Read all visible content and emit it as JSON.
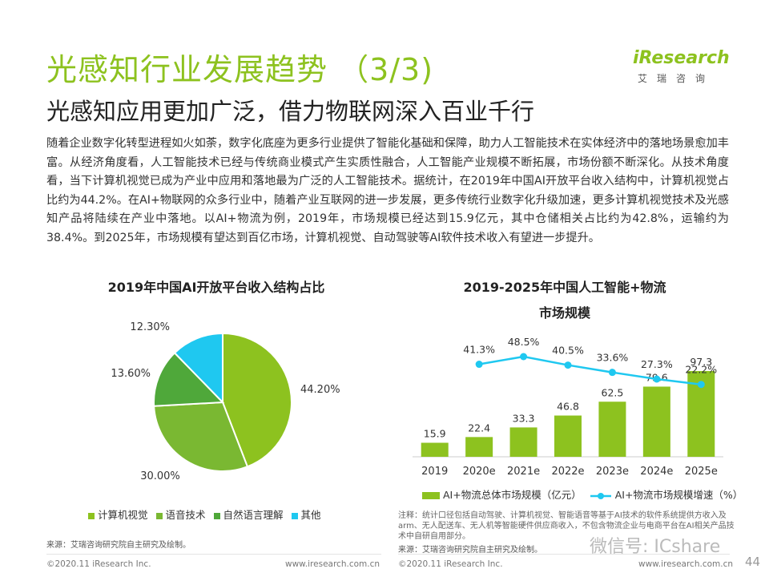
{
  "header": {
    "title": "光感知行业发展趋势 （3/3)",
    "subtitle": "光感知应用更加广泛，借力物联网深入百业千行"
  },
  "logo": {
    "main": "iResearch",
    "sub": "艾瑞咨询"
  },
  "body_text": "随着企业数字化转型进程如火如荼，数字化底座为更多行业提供了智能化基础和保障，助力人工智能技术在实体经济中的落地场景愈加丰富。从经济角度看，人工智能技术已经与传统商业模式产生实质性融合，人工智能产业规模不断拓展，市场份额不断深化。从技术角度看，当下计算机视觉已成为产业中应用和落地最为广泛的人工智能技术。据统计，在2019年中国AI开放平台收入结构中，计算机视觉占比约为44.2%。在AI+物联网的众多行业中，随着产业互联网的进一步发展，更多传统行业数字化升级加速，更多计算机视觉技术及光感知产品将陆续在产业中落地。以AI+物流为例，2019年，市场规模已经达到15.9亿元，其中仓储相关占比约为42.8%，运输约为38.4%。到2025年，市场规模有望达到百亿市场，计算机视觉、自动驾驶等AI软件技术收入有望进一步提升。",
  "chart_data": [
    {
      "type": "pie",
      "title": "2019年中国AI开放平台收入结构占比",
      "categories": [
        "计算机视觉",
        "语音技术",
        "自然语言理解",
        "其他"
      ],
      "values": [
        44.2,
        30.0,
        13.6,
        12.3
      ],
      "labels": [
        "44.20%",
        "30.00%",
        "13.60%",
        "12.30%"
      ],
      "colors": [
        "#8dc21f",
        "#7ab832",
        "#4fa83a",
        "#1fc8f0"
      ],
      "legend": "bottom"
    },
    {
      "type": "bar",
      "title_line1": "2019-2025年中国人工智能+物流",
      "title_line2": "市场规模",
      "categories": [
        "2019",
        "2020e",
        "2021e",
        "2022e",
        "2023e",
        "2024e",
        "2025e"
      ],
      "series": [
        {
          "name": "AI+物流总体市场规模（亿元）",
          "type": "bar",
          "values": [
            15.9,
            22.4,
            33.3,
            46.8,
            62.5,
            79.6,
            97.3
          ],
          "labels": [
            "15.9",
            "22.4",
            "33.3",
            "46.8",
            "62.5",
            "79.6",
            "97.3"
          ],
          "color": "#8dc21f"
        },
        {
          "name": "AI+物流市场规模增速（%）",
          "type": "line",
          "values": [
            null,
            41.3,
            48.5,
            40.5,
            33.6,
            27.3,
            22.2
          ],
          "labels": [
            "",
            "41.3%",
            "48.5%",
            "40.5%",
            "33.6%",
            "27.3%",
            "22.2%"
          ],
          "color": "#1fc8f0"
        }
      ],
      "legend": "bottom"
    }
  ],
  "left_source": "来源：艾瑞咨询研究院自主研究及绘制。",
  "right_note": "注释：统计口径包括自动驾驶、计算机视觉、智能语音等基于AI技术的软件系统提供方收入及arm、无人配送车、无人机等智能硬件供应商收入，不包含物流企业与电商平台在AI相关产品技术中自研自用部分。",
  "right_source": "来源：艾瑞咨询研究院自主研究及绘制。",
  "footer": {
    "left_copyright": "©2020.11 iResearch Inc.",
    "left_url": "www.iresearch.com.cn",
    "right_copyright": "©2020.11 iResearch Inc.",
    "right_url": "www.iresearch.com.cn"
  },
  "watermark": "微信号: ICshare",
  "page_number": "44"
}
